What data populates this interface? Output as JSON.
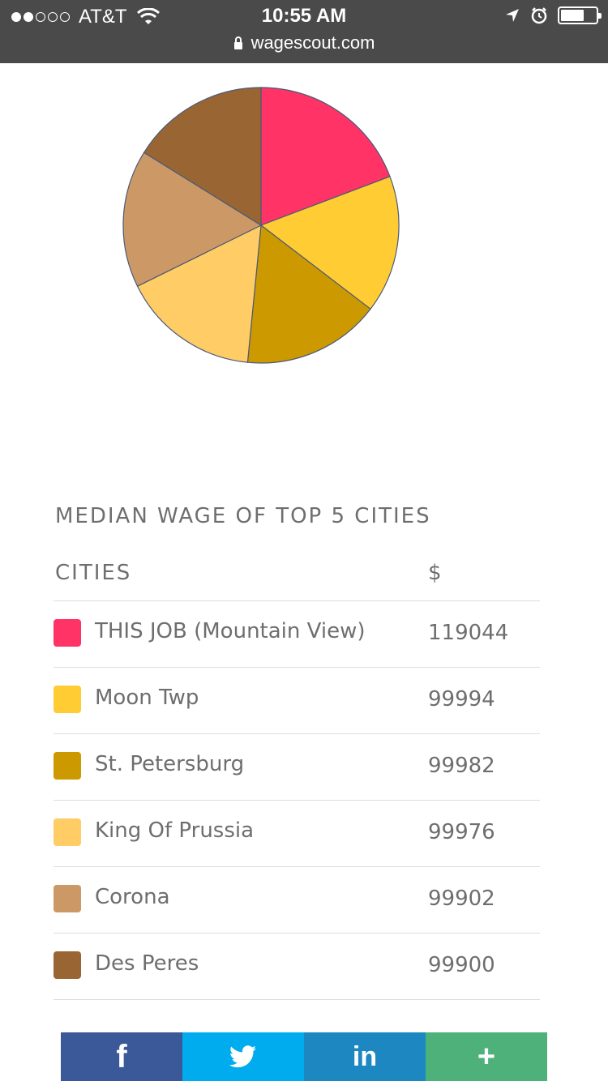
{
  "status": {
    "carrier": "AT&T",
    "time": "10:55 AM",
    "url": "wagescout.com"
  },
  "section_title": "MEDIAN WAGE OF TOP 5 CITIES",
  "table": {
    "col_city": "CITIES",
    "col_value": "$",
    "rows": [
      {
        "city": "THIS JOB (Mountain View)",
        "value": "119044",
        "color": "#ff3366"
      },
      {
        "city": "Moon Twp",
        "value": "99994",
        "color": "#ffcc33"
      },
      {
        "city": "St. Petersburg",
        "value": "99982",
        "color": "#cc9900"
      },
      {
        "city": "King Of Prussia",
        "value": "99976",
        "color": "#ffcc66"
      },
      {
        "city": "Corona",
        "value": "99902",
        "color": "#cc9966"
      },
      {
        "city": "Des Peres",
        "value": "99900",
        "color": "#996633"
      }
    ]
  },
  "chart_data": {
    "type": "pie",
    "categories": [
      "THIS JOB (Mountain View)",
      "Moon Twp",
      "St. Petersburg",
      "King Of Prussia",
      "Corona",
      "Des Peres"
    ],
    "values": [
      119044,
      99994,
      99982,
      99976,
      99902,
      99900
    ],
    "colors": [
      "#ff3366",
      "#ffcc33",
      "#cc9900",
      "#ffcc66",
      "#cc9966",
      "#996633"
    ]
  },
  "share": {
    "facebook_label": "f",
    "linkedin_label": "in",
    "more_label": "+",
    "twitter_icon": "twitter-bird-icon"
  }
}
